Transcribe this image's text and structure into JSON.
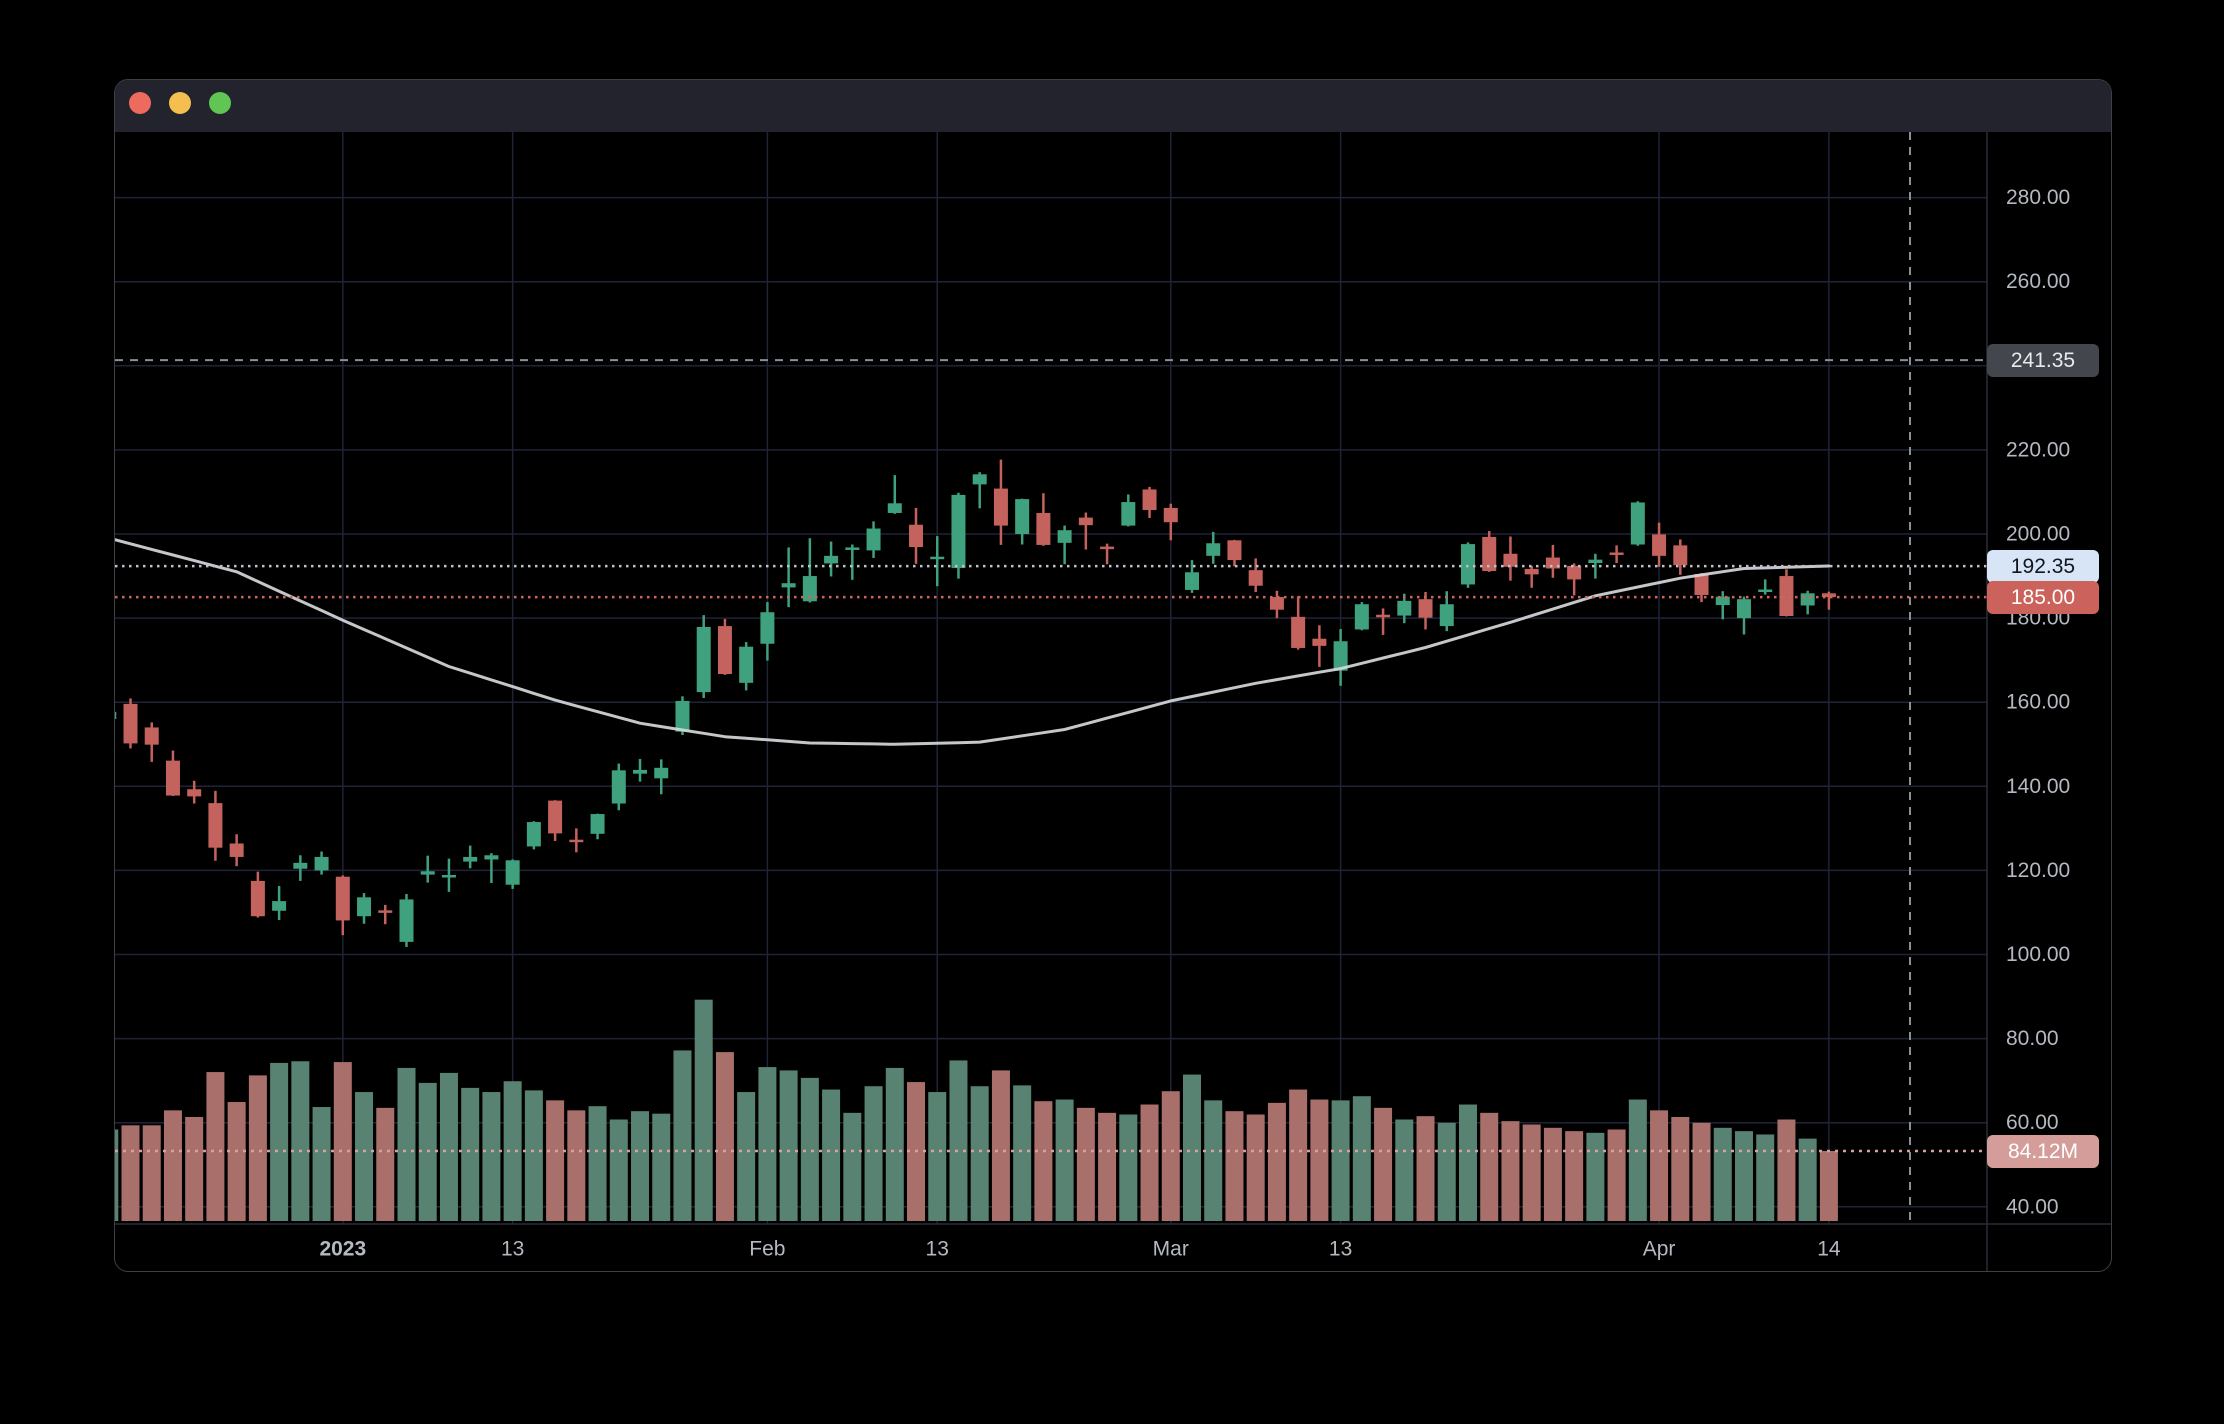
{
  "window": {
    "controls": [
      {
        "name": "close",
        "color": "#ed6a5e"
      },
      {
        "name": "minimize",
        "color": "#f4bf4f"
      },
      {
        "name": "zoom",
        "color": "#61c554"
      }
    ],
    "titlebar_color": "#22232d"
  },
  "price_axis": {
    "crosshair_label": "241.35",
    "ma_label": "192.35",
    "last_label": "185.00",
    "volume_label": "84.12M",
    "ticks": [
      {
        "label": "280.00",
        "value": 280
      },
      {
        "label": "260.00",
        "value": 260
      },
      {
        "label": "220.00",
        "value": 220
      },
      {
        "label": "200.00",
        "value": 200
      },
      {
        "label": "180.00",
        "value": 180
      },
      {
        "label": "160.00",
        "value": 160
      },
      {
        "label": "140.00",
        "value": 140
      },
      {
        "label": "120.00",
        "value": 120
      },
      {
        "label": "100.00",
        "value": 100
      },
      {
        "label": "80.00",
        "value": 80
      },
      {
        "label": "60.00",
        "value": 60
      },
      {
        "label": "40.00",
        "value": 40
      }
    ]
  },
  "time_axis": {
    "ticks": [
      {
        "label": "2023",
        "index": 11,
        "bold": true
      },
      {
        "label": "13",
        "index": 19,
        "bold": false
      },
      {
        "label": "Feb",
        "index": 31,
        "bold": false
      },
      {
        "label": "13",
        "index": 39,
        "bold": false
      },
      {
        "label": "Mar",
        "index": 50,
        "bold": false
      },
      {
        "label": "13",
        "index": 58,
        "bold": false
      },
      {
        "label": "Apr",
        "index": 73,
        "bold": false
      },
      {
        "label": "14",
        "index": 81,
        "bold": false
      }
    ]
  },
  "style": {
    "candle_up": "#3fa17e",
    "candle_down": "#c4625d",
    "volume_up": "#588272",
    "volume_down": "#a96f6b",
    "ma_line": "#d5d7db",
    "grid": "#1f2338",
    "axis_border": "#2a2e39",
    "crosshair": "#8b8f9a",
    "axis_text": "#b4b8c1",
    "ma_dotted_line": "#bcc1cb",
    "last_price_line": "#d0655e",
    "volume_dotted_line": "#d9a19d",
    "pill_crosshair_bg": "#44464e",
    "pill_ma_bg": "#d7e5f6",
    "pill_last_bg": "#cb625c",
    "pill_volume_bg": "#d49d99"
  },
  "chart_data": {
    "type": "candlestick",
    "title": "",
    "interval": "daily",
    "legend_position": "none",
    "grid": true,
    "price_gridlines": [
      280,
      260,
      240,
      220,
      200,
      180,
      160,
      140,
      120,
      100,
      80,
      60,
      40
    ],
    "visible_price_range": [
      37,
      297
    ],
    "levels": {
      "crosshair_price": 241.35,
      "ma_last_value": 192.35,
      "last_price": 185.0,
      "last_volume_m": 84.12
    },
    "dates": [
      "2022-12-15",
      "2022-12-16",
      "2022-12-19",
      "2022-12-20",
      "2022-12-21",
      "2022-12-22",
      "2022-12-23",
      "2022-12-27",
      "2022-12-28",
      "2022-12-29",
      "2022-12-30",
      "2023-01-03",
      "2023-01-04",
      "2023-01-05",
      "2023-01-06",
      "2023-01-09",
      "2023-01-10",
      "2023-01-11",
      "2023-01-12",
      "2023-01-13",
      "2023-01-17",
      "2023-01-18",
      "2023-01-19",
      "2023-01-20",
      "2023-01-23",
      "2023-01-24",
      "2023-01-25",
      "2023-01-26",
      "2023-01-27",
      "2023-01-30",
      "2023-01-31",
      "2023-02-01",
      "2023-02-02",
      "2023-02-03",
      "2023-02-06",
      "2023-02-07",
      "2023-02-08",
      "2023-02-09",
      "2023-02-10",
      "2023-02-13",
      "2023-02-14",
      "2023-02-15",
      "2023-02-16",
      "2023-02-17",
      "2023-02-21",
      "2023-02-22",
      "2023-02-23",
      "2023-02-24",
      "2023-02-27",
      "2023-02-28",
      "2023-03-01",
      "2023-03-02",
      "2023-03-03",
      "2023-03-06",
      "2023-03-07",
      "2023-03-08",
      "2023-03-09",
      "2023-03-10",
      "2023-03-13",
      "2023-03-14",
      "2023-03-15",
      "2023-03-16",
      "2023-03-17",
      "2023-03-20",
      "2023-03-21",
      "2023-03-22",
      "2023-03-23",
      "2023-03-24",
      "2023-03-27",
      "2023-03-28",
      "2023-03-29",
      "2023-03-30",
      "2023-03-31",
      "2023-04-03",
      "2023-04-04",
      "2023-04-05",
      "2023-04-06",
      "2023-04-10",
      "2023-04-11",
      "2023-04-12",
      "2023-04-13",
      "2023-04-14"
    ],
    "ohlc": [
      [
        156.0,
        160.9,
        155.3,
        157.7
      ],
      [
        159.6,
        160.9,
        149.0,
        150.2
      ],
      [
        154.0,
        155.2,
        145.8,
        149.9
      ],
      [
        146.1,
        148.5,
        137.7,
        137.8
      ],
      [
        139.3,
        141.3,
        135.9,
        137.6
      ],
      [
        136.0,
        138.9,
        122.3,
        125.4
      ],
      [
        126.4,
        128.6,
        121.0,
        123.2
      ],
      [
        117.5,
        119.7,
        108.8,
        109.1
      ],
      [
        110.4,
        116.3,
        108.2,
        112.7
      ],
      [
        120.4,
        123.6,
        117.5,
        121.8
      ],
      [
        120.0,
        124.5,
        119.0,
        123.2
      ],
      [
        118.5,
        118.8,
        104.6,
        108.1
      ],
      [
        109.1,
        114.6,
        107.3,
        113.6
      ],
      [
        110.5,
        111.8,
        107.2,
        110.3
      ],
      [
        103.0,
        114.4,
        101.8,
        113.1
      ],
      [
        119.0,
        123.5,
        117.1,
        119.8
      ],
      [
        118.4,
        122.8,
        114.9,
        118.9
      ],
      [
        122.1,
        125.9,
        120.5,
        123.2
      ],
      [
        122.6,
        124.1,
        117.0,
        123.6
      ],
      [
        116.6,
        122.6,
        115.6,
        122.4
      ],
      [
        125.7,
        131.7,
        125.0,
        131.5
      ],
      [
        136.6,
        136.7,
        127.0,
        128.8
      ],
      [
        127.3,
        130.0,
        124.3,
        127.2
      ],
      [
        128.7,
        133.5,
        127.4,
        133.4
      ],
      [
        135.9,
        145.4,
        134.3,
        143.8
      ],
      [
        143.0,
        146.5,
        141.1,
        143.9
      ],
      [
        141.9,
        146.4,
        138.1,
        144.4
      ],
      [
        153.0,
        161.4,
        152.2,
        160.3
      ],
      [
        162.4,
        180.7,
        161.0,
        177.9
      ],
      [
        178.1,
        179.8,
        166.5,
        166.7
      ],
      [
        164.6,
        174.3,
        162.8,
        173.2
      ],
      [
        173.9,
        183.8,
        169.9,
        181.4
      ],
      [
        187.3,
        196.8,
        182.6,
        188.3
      ],
      [
        184.0,
        199.0,
        183.7,
        190.0
      ],
      [
        193.0,
        198.2,
        189.9,
        194.8
      ],
      [
        196.4,
        197.5,
        189.1,
        196.8
      ],
      [
        196.1,
        203.0,
        194.3,
        201.3
      ],
      [
        205.0,
        214.0,
        204.8,
        207.3
      ],
      [
        202.2,
        206.2,
        192.9,
        196.9
      ],
      [
        194.4,
        199.5,
        187.6,
        194.6
      ],
      [
        191.9,
        209.8,
        189.4,
        209.3
      ],
      [
        211.8,
        214.7,
        206.1,
        214.2
      ],
      [
        210.8,
        217.7,
        197.4,
        202.0
      ],
      [
        200.0,
        208.4,
        197.5,
        208.3
      ],
      [
        205.0,
        209.7,
        197.2,
        197.4
      ],
      [
        197.9,
        202.0,
        192.8,
        200.9
      ],
      [
        203.9,
        205.1,
        196.3,
        202.1
      ],
      [
        197.0,
        197.7,
        192.8,
        196.4
      ],
      [
        202.0,
        209.4,
        201.8,
        207.6
      ],
      [
        210.6,
        211.2,
        203.8,
        205.7
      ],
      [
        206.2,
        207.2,
        198.5,
        202.8
      ],
      [
        186.7,
        193.8,
        186.0,
        190.9
      ],
      [
        194.8,
        200.5,
        192.9,
        197.8
      ],
      [
        198.5,
        198.6,
        192.3,
        193.8
      ],
      [
        191.4,
        194.2,
        186.2,
        187.7
      ],
      [
        185.0,
        186.5,
        180.0,
        182.0
      ],
      [
        180.3,
        185.2,
        172.5,
        172.9
      ],
      [
        175.1,
        178.3,
        168.4,
        173.4
      ],
      [
        167.5,
        177.4,
        163.9,
        174.5
      ],
      [
        177.3,
        183.8,
        177.1,
        183.3
      ],
      [
        180.8,
        182.3,
        176.0,
        180.5
      ],
      [
        180.6,
        185.8,
        178.8,
        184.1
      ],
      [
        184.5,
        186.2,
        177.3,
        180.1
      ],
      [
        178.1,
        186.4,
        176.9,
        183.3
      ],
      [
        188.0,
        198.0,
        187.2,
        197.6
      ],
      [
        199.3,
        200.7,
        191.0,
        191.2
      ],
      [
        195.3,
        199.4,
        188.9,
        192.2
      ],
      [
        191.7,
        192.4,
        187.2,
        190.4
      ],
      [
        194.4,
        197.4,
        189.6,
        191.8
      ],
      [
        192.4,
        193.0,
        185.4,
        189.2
      ],
      [
        193.1,
        195.3,
        189.4,
        193.9
      ],
      [
        195.6,
        197.3,
        193.1,
        195.3
      ],
      [
        197.5,
        207.8,
        197.2,
        207.5
      ],
      [
        199.9,
        202.7,
        192.2,
        194.8
      ],
      [
        197.3,
        198.7,
        190.3,
        192.6
      ],
      [
        190.5,
        190.7,
        183.8,
        185.5
      ],
      [
        183.1,
        186.4,
        179.7,
        185.1
      ],
      [
        180.0,
        185.1,
        176.1,
        184.5
      ],
      [
        186.7,
        189.2,
        185.6,
        186.8
      ],
      [
        190.0,
        191.6,
        180.4,
        180.5
      ],
      [
        183.0,
        186.5,
        180.9,
        185.9
      ],
      [
        185.9,
        186.3,
        182.0,
        185.0
      ]
    ],
    "volumes_m": [
      110,
      115,
      115,
      133,
      125,
      179,
      143,
      175,
      190,
      192,
      137,
      191,
      155,
      136,
      184,
      166,
      178,
      160,
      155,
      168,
      157,
      145,
      133,
      138,
      122,
      132,
      129,
      205,
      266,
      203,
      155,
      185,
      181,
      172,
      158,
      130,
      162,
      184,
      167,
      155,
      193,
      162,
      181,
      163,
      144,
      146,
      136,
      130,
      128,
      140,
      156,
      176,
      145,
      132,
      128,
      142,
      158,
      146,
      145,
      150,
      136,
      122,
      126,
      118,
      140,
      130,
      120,
      116,
      112,
      108,
      106,
      110,
      146,
      133,
      125,
      118,
      112,
      108,
      104,
      122,
      99,
      84.12
    ],
    "ma_control_points": [
      [
        0,
        199
      ],
      [
        6,
        191
      ],
      [
        11,
        179.5
      ],
      [
        16,
        168.5
      ],
      [
        21,
        160.5
      ],
      [
        25,
        155
      ],
      [
        29,
        151.8
      ],
      [
        33,
        150.3
      ],
      [
        37,
        150
      ],
      [
        41,
        150.5
      ],
      [
        45,
        153.5
      ],
      [
        50,
        160.3
      ],
      [
        54,
        164.5
      ],
      [
        58,
        168
      ],
      [
        62,
        173
      ],
      [
        66,
        179
      ],
      [
        70,
        185.3
      ],
      [
        74,
        189.5
      ],
      [
        77,
        191.8
      ],
      [
        81,
        192.4
      ]
    ]
  }
}
